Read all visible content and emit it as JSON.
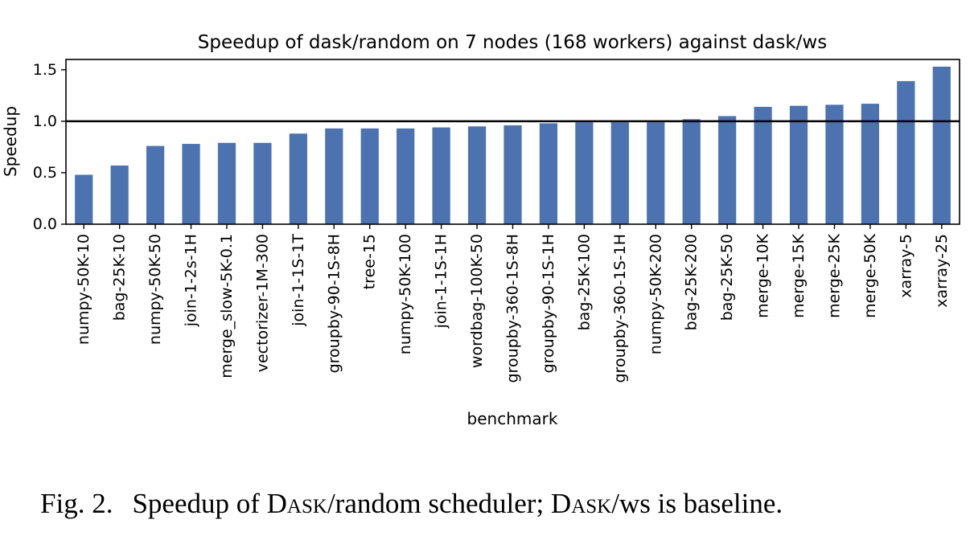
{
  "chart_data": {
    "type": "bar",
    "title": "Speedup of dask/random on 7 nodes (168 workers) against dask/ws",
    "xlabel": "benchmark",
    "ylabel": "Speedup",
    "ylim": [
      0,
      1.6
    ],
    "yticks": [
      "0.0",
      "0.5",
      "1.0",
      "1.5"
    ],
    "reference_line": 1.0,
    "bar_color": "#4c72b0",
    "grid": false,
    "categories": [
      "numpy-50K-10",
      "bag-25K-10",
      "numpy-50K-50",
      "join-1-2s-1H",
      "merge_slow-5K-0.1",
      "vectorizer-1M-300",
      "join-1-1S-1T",
      "groupby-90-1S-8H",
      "tree-15",
      "numpy-50K-100",
      "join-1-1S-1H",
      "wordbag-100K-50",
      "groupby-360-1S-8H",
      "groupby-90-1S-1H",
      "bag-25K-100",
      "groupby-360-1S-1H",
      "numpy-50K-200",
      "bag-25K-200",
      "bag-25K-50",
      "merge-10K",
      "merge-15K",
      "merge-25K",
      "merge-50K",
      "xarray-5",
      "xarray-25"
    ],
    "values": [
      0.48,
      0.57,
      0.76,
      0.78,
      0.79,
      0.79,
      0.88,
      0.93,
      0.93,
      0.93,
      0.94,
      0.95,
      0.96,
      0.98,
      0.99,
      0.99,
      0.99,
      1.02,
      1.05,
      1.14,
      1.15,
      1.16,
      1.17,
      1.39,
      1.53
    ]
  },
  "caption": {
    "prefix": "Fig. 2.",
    "text_1": "Speedup of ",
    "dask_1": "Dask",
    "text_2": "/random scheduler; ",
    "dask_2": "Dask",
    "text_3": "/ws is baseline."
  }
}
